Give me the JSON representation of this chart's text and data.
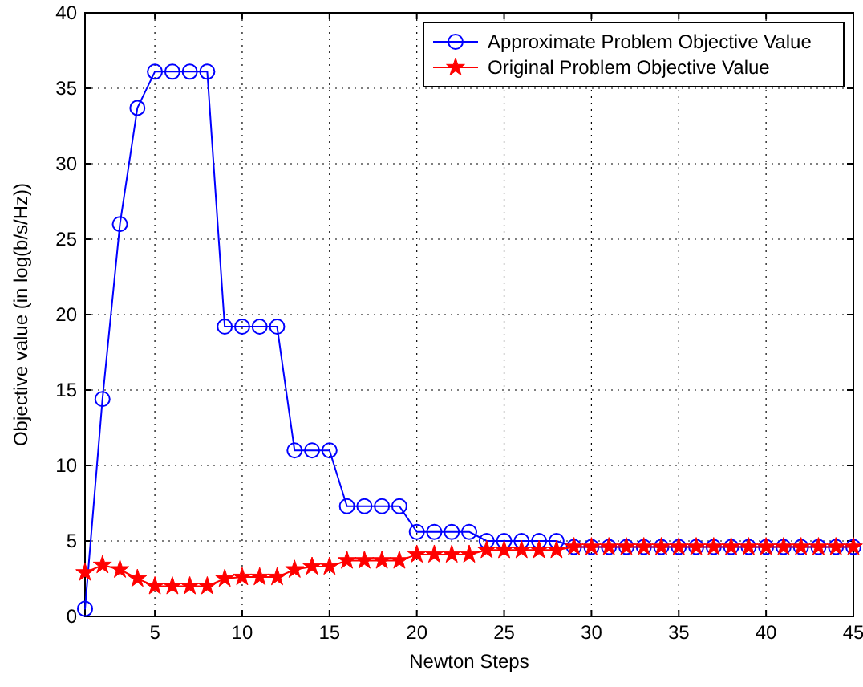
{
  "chart_data": {
    "type": "line",
    "xlabel": "Newton Steps",
    "ylabel": "Objective value (in log(b/s/Hz))",
    "x": [
      1,
      2,
      3,
      4,
      5,
      6,
      7,
      8,
      9,
      10,
      11,
      12,
      13,
      14,
      15,
      16,
      17,
      18,
      19,
      20,
      21,
      22,
      23,
      24,
      25,
      26,
      27,
      28,
      29,
      30,
      31,
      32,
      33,
      34,
      35,
      36,
      37,
      38,
      39,
      40,
      41,
      42,
      43,
      44,
      45
    ],
    "series": [
      {
        "name": "Approximate Problem Objective Value",
        "color": "#0000ff",
        "marker": "circle",
        "values": [
          0.5,
          14.4,
          26.0,
          33.7,
          36.1,
          36.1,
          36.1,
          36.1,
          19.2,
          19.2,
          19.2,
          19.2,
          11.0,
          11.0,
          11.0,
          7.3,
          7.3,
          7.3,
          7.3,
          5.6,
          5.6,
          5.6,
          5.6,
          5.0,
          5.0,
          5.0,
          5.0,
          5.0,
          4.6,
          4.6,
          4.6,
          4.6,
          4.6,
          4.6,
          4.6,
          4.6,
          4.6,
          4.6,
          4.6,
          4.6,
          4.6,
          4.6,
          4.6,
          4.6,
          4.6
        ]
      },
      {
        "name": "Original Problem Objective Value",
        "color": "#ff0000",
        "marker": "star",
        "values": [
          2.9,
          3.4,
          3.1,
          2.5,
          2.0,
          2.0,
          2.0,
          2.0,
          2.5,
          2.6,
          2.6,
          2.6,
          3.1,
          3.3,
          3.3,
          3.7,
          3.7,
          3.7,
          3.7,
          4.1,
          4.1,
          4.1,
          4.1,
          4.4,
          4.4,
          4.4,
          4.4,
          4.4,
          4.6,
          4.6,
          4.6,
          4.6,
          4.6,
          4.6,
          4.6,
          4.6,
          4.6,
          4.6,
          4.6,
          4.6,
          4.6,
          4.6,
          4.6,
          4.6,
          4.6
        ]
      }
    ],
    "xlim": [
      1,
      45
    ],
    "ylim": [
      0,
      40
    ],
    "xticks": [
      5,
      10,
      15,
      20,
      25,
      30,
      35,
      40,
      45
    ],
    "yticks": [
      0,
      5,
      10,
      15,
      20,
      25,
      30,
      35,
      40
    ],
    "grid": true,
    "legend": "top right",
    "line_style": "solid"
  }
}
